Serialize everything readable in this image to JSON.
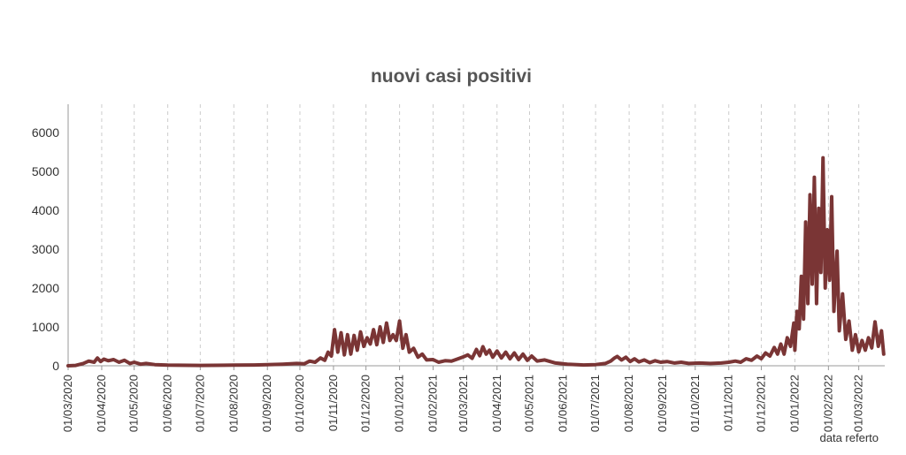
{
  "chart_data": {
    "type": "line",
    "title": "nuovi casi positivi",
    "xlabel": "data referto",
    "ylabel": "",
    "ylim": [
      0,
      6500
    ],
    "yticks": [
      0,
      1000,
      2000,
      3000,
      4000,
      5000,
      6000
    ],
    "xlim": [
      "2020-03-01",
      "2022-03-25"
    ],
    "xticks": [
      "01/03/2020",
      "01/04/2020",
      "01/05/2020",
      "01/06/2020",
      "01/07/2020",
      "01/08/2020",
      "01/09/2020",
      "01/10/2020",
      "01/11/2020",
      "01/12/2020",
      "01/01/2021",
      "01/02/2021",
      "01/03/2021",
      "01/04/2021",
      "01/05/2021",
      "01/06/2021",
      "01/07/2021",
      "01/08/2021",
      "01/09/2021",
      "01/10/2021",
      "01/11/2021",
      "01/12/2021",
      "01/01/2022",
      "01/02/2022",
      "01/03/2022"
    ],
    "grid": "vertical dashed",
    "color": "#7a3535",
    "series": [
      {
        "points": [
          [
            "2020-03-01",
            0
          ],
          [
            "2020-03-08",
            10
          ],
          [
            "2020-03-15",
            60
          ],
          [
            "2020-03-20",
            120
          ],
          [
            "2020-03-25",
            90
          ],
          [
            "2020-03-28",
            200
          ],
          [
            "2020-03-31",
            110
          ],
          [
            "2020-04-03",
            170
          ],
          [
            "2020-04-07",
            130
          ],
          [
            "2020-04-12",
            160
          ],
          [
            "2020-04-17",
            90
          ],
          [
            "2020-04-22",
            140
          ],
          [
            "2020-04-27",
            60
          ],
          [
            "2020-05-01",
            90
          ],
          [
            "2020-05-07",
            40
          ],
          [
            "2020-05-12",
            60
          ],
          [
            "2020-05-20",
            30
          ],
          [
            "2020-06-01",
            15
          ],
          [
            "2020-07-01",
            10
          ],
          [
            "2020-08-01",
            15
          ],
          [
            "2020-08-20",
            20
          ],
          [
            "2020-09-01",
            30
          ],
          [
            "2020-09-15",
            40
          ],
          [
            "2020-09-28",
            60
          ],
          [
            "2020-10-05",
            50
          ],
          [
            "2020-10-10",
            120
          ],
          [
            "2020-10-15",
            90
          ],
          [
            "2020-10-20",
            200
          ],
          [
            "2020-10-24",
            140
          ],
          [
            "2020-10-27",
            350
          ],
          [
            "2020-10-30",
            250
          ],
          [
            "2020-11-02",
            930
          ],
          [
            "2020-11-05",
            350
          ],
          [
            "2020-11-08",
            850
          ],
          [
            "2020-11-11",
            280
          ],
          [
            "2020-11-14",
            800
          ],
          [
            "2020-11-17",
            300
          ],
          [
            "2020-11-20",
            780
          ],
          [
            "2020-11-23",
            400
          ],
          [
            "2020-11-26",
            870
          ],
          [
            "2020-11-29",
            500
          ],
          [
            "2020-12-02",
            720
          ],
          [
            "2020-12-05",
            560
          ],
          [
            "2020-12-08",
            930
          ],
          [
            "2020-12-11",
            540
          ],
          [
            "2020-12-14",
            1000
          ],
          [
            "2020-12-17",
            600
          ],
          [
            "2020-12-20",
            1100
          ],
          [
            "2020-12-23",
            650
          ],
          [
            "2020-12-26",
            800
          ],
          [
            "2020-12-29",
            650
          ],
          [
            "2021-01-01",
            1150
          ],
          [
            "2021-01-04",
            450
          ],
          [
            "2021-01-07",
            800
          ],
          [
            "2021-01-10",
            350
          ],
          [
            "2021-01-14",
            450
          ],
          [
            "2021-01-18",
            220
          ],
          [
            "2021-01-22",
            300
          ],
          [
            "2021-01-26",
            150
          ],
          [
            "2021-02-01",
            160
          ],
          [
            "2021-02-06",
            90
          ],
          [
            "2021-02-12",
            130
          ],
          [
            "2021-02-18",
            120
          ],
          [
            "2021-02-24",
            180
          ],
          [
            "2021-03-01",
            230
          ],
          [
            "2021-03-05",
            280
          ],
          [
            "2021-03-09",
            190
          ],
          [
            "2021-03-13",
            420
          ],
          [
            "2021-03-16",
            260
          ],
          [
            "2021-03-19",
            490
          ],
          [
            "2021-03-22",
            300
          ],
          [
            "2021-03-25",
            400
          ],
          [
            "2021-03-28",
            220
          ],
          [
            "2021-04-01",
            380
          ],
          [
            "2021-04-05",
            200
          ],
          [
            "2021-04-09",
            350
          ],
          [
            "2021-04-13",
            180
          ],
          [
            "2021-04-17",
            330
          ],
          [
            "2021-04-21",
            160
          ],
          [
            "2021-04-25",
            300
          ],
          [
            "2021-04-29",
            140
          ],
          [
            "2021-05-03",
            250
          ],
          [
            "2021-05-08",
            120
          ],
          [
            "2021-05-15",
            150
          ],
          [
            "2021-05-25",
            70
          ],
          [
            "2021-06-05",
            40
          ],
          [
            "2021-06-20",
            20
          ],
          [
            "2021-07-01",
            30
          ],
          [
            "2021-07-10",
            60
          ],
          [
            "2021-07-15",
            120
          ],
          [
            "2021-07-18",
            190
          ],
          [
            "2021-07-21",
            240
          ],
          [
            "2021-07-25",
            150
          ],
          [
            "2021-07-29",
            220
          ],
          [
            "2021-08-02",
            110
          ],
          [
            "2021-08-06",
            180
          ],
          [
            "2021-08-10",
            100
          ],
          [
            "2021-08-15",
            150
          ],
          [
            "2021-08-20",
            80
          ],
          [
            "2021-08-25",
            130
          ],
          [
            "2021-08-30",
            90
          ],
          [
            "2021-09-05",
            110
          ],
          [
            "2021-09-12",
            70
          ],
          [
            "2021-09-18",
            90
          ],
          [
            "2021-09-25",
            60
          ],
          [
            "2021-10-05",
            70
          ],
          [
            "2021-10-15",
            60
          ],
          [
            "2021-10-25",
            70
          ],
          [
            "2021-11-01",
            90
          ],
          [
            "2021-11-07",
            120
          ],
          [
            "2021-11-12",
            90
          ],
          [
            "2021-11-17",
            180
          ],
          [
            "2021-11-22",
            140
          ],
          [
            "2021-11-27",
            250
          ],
          [
            "2021-12-01",
            180
          ],
          [
            "2021-12-05",
            330
          ],
          [
            "2021-12-09",
            250
          ],
          [
            "2021-12-13",
            470
          ],
          [
            "2021-12-16",
            300
          ],
          [
            "2021-12-19",
            560
          ],
          [
            "2021-12-22",
            300
          ],
          [
            "2021-12-25",
            720
          ],
          [
            "2021-12-28",
            500
          ],
          [
            "2021-12-31",
            1100
          ],
          [
            "2022-01-01",
            400
          ],
          [
            "2022-01-03",
            1400
          ],
          [
            "2022-01-05",
            950
          ],
          [
            "2022-01-07",
            2300
          ],
          [
            "2022-01-09",
            1200
          ],
          [
            "2022-01-11",
            3700
          ],
          [
            "2022-01-13",
            1600
          ],
          [
            "2022-01-15",
            4400
          ],
          [
            "2022-01-17",
            2100
          ],
          [
            "2022-01-19",
            4850
          ],
          [
            "2022-01-21",
            1600
          ],
          [
            "2022-01-23",
            4050
          ],
          [
            "2022-01-25",
            2400
          ],
          [
            "2022-01-27",
            5350
          ],
          [
            "2022-01-29",
            2000
          ],
          [
            "2022-01-31",
            3500
          ],
          [
            "2022-02-02",
            2200
          ],
          [
            "2022-02-04",
            4350
          ],
          [
            "2022-02-06",
            1400
          ],
          [
            "2022-02-09",
            2950
          ],
          [
            "2022-02-11",
            900
          ],
          [
            "2022-02-14",
            1850
          ],
          [
            "2022-02-17",
            680
          ],
          [
            "2022-02-20",
            1150
          ],
          [
            "2022-02-23",
            400
          ],
          [
            "2022-02-26",
            800
          ],
          [
            "2022-03-01",
            360
          ],
          [
            "2022-03-04",
            650
          ],
          [
            "2022-03-07",
            400
          ],
          [
            "2022-03-10",
            720
          ],
          [
            "2022-03-13",
            460
          ],
          [
            "2022-03-16",
            1130
          ],
          [
            "2022-03-19",
            500
          ],
          [
            "2022-03-22",
            900
          ],
          [
            "2022-03-24",
            300
          ]
        ]
      }
    ]
  }
}
